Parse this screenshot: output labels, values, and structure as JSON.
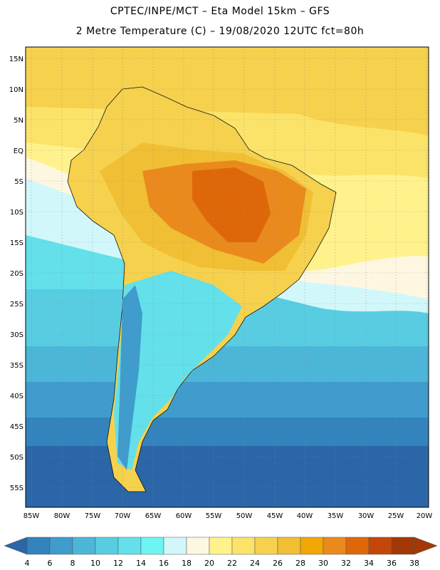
{
  "header": {
    "line1": "CPTEC/INPE/MCT –  Eta Model 15km – GFS",
    "line2": "2 Metre Temperature (C) – 19/08/2020 12UTC fct=80h"
  },
  "axes": {
    "lat_labels": [
      "15N",
      "10N",
      "5N",
      "EQ",
      "5S",
      "10S",
      "15S",
      "20S",
      "25S",
      "30S",
      "35S",
      "40S",
      "45S",
      "50S",
      "55S"
    ],
    "lon_labels": [
      "85W",
      "80W",
      "75W",
      "70W",
      "65W",
      "60W",
      "55W",
      "50W",
      "45W",
      "40W",
      "35W",
      "30W",
      "25W",
      "20W"
    ]
  },
  "colorbar": {
    "labels": [
      "4",
      "6",
      "8",
      "10",
      "12",
      "14",
      "16",
      "18",
      "20",
      "22",
      "24",
      "26",
      "28",
      "30",
      "32",
      "34",
      "36",
      "38"
    ],
    "colors": [
      "#2a66a8",
      "#3383bd",
      "#3f9ccc",
      "#4cb6d8",
      "#58cde2",
      "#63e0ea",
      "#6ef5f3",
      "#d2f7fa",
      "#fdf7e2",
      "#fff28c",
      "#fbe369",
      "#f6d14e",
      "#f0bf34",
      "#f2a705",
      "#ea8a1d",
      "#de6809",
      "#c4470a",
      "#a23805"
    ]
  }
}
